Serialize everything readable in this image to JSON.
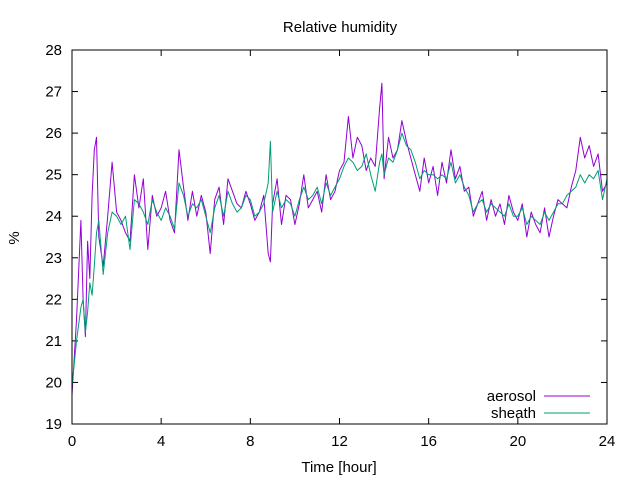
{
  "chart_data": {
    "type": "line",
    "title": "Relative humidity",
    "xlabel": "Time [hour]",
    "ylabel": "%",
    "xlim": [
      0,
      24
    ],
    "ylim": [
      19,
      28
    ],
    "xticks": [
      0,
      4,
      8,
      12,
      16,
      20,
      24
    ],
    "yticks": [
      19,
      20,
      21,
      22,
      23,
      24,
      25,
      26,
      27,
      28
    ],
    "grid": false,
    "legend_position": "bottom-right",
    "series": [
      {
        "name": "aerosol",
        "color": "#9400d3",
        "x": [
          0,
          0.2,
          0.4,
          0.5,
          0.6,
          0.7,
          0.8,
          0.9,
          1.0,
          1.1,
          1.2,
          1.4,
          1.6,
          1.8,
          2.0,
          2.2,
          2.4,
          2.6,
          2.8,
          3.0,
          3.2,
          3.4,
          3.6,
          3.8,
          4.0,
          4.2,
          4.4,
          4.6,
          4.8,
          5.0,
          5.2,
          5.4,
          5.6,
          5.8,
          6.0,
          6.2,
          6.4,
          6.6,
          6.8,
          7.0,
          7.2,
          7.4,
          7.6,
          7.8,
          8.0,
          8.2,
          8.4,
          8.6,
          8.8,
          8.9,
          9.0,
          9.2,
          9.4,
          9.6,
          9.8,
          10.0,
          10.2,
          10.4,
          10.6,
          10.8,
          11.0,
          11.2,
          11.4,
          11.6,
          11.8,
          12.0,
          12.2,
          12.4,
          12.6,
          12.8,
          13.0,
          13.2,
          13.4,
          13.6,
          13.8,
          13.9,
          14.0,
          14.2,
          14.4,
          14.6,
          14.8,
          15.0,
          15.2,
          15.4,
          15.6,
          15.8,
          16.0,
          16.2,
          16.4,
          16.6,
          16.8,
          17.0,
          17.2,
          17.4,
          17.6,
          17.8,
          18.0,
          18.2,
          18.4,
          18.6,
          18.8,
          19.0,
          19.2,
          19.4,
          19.6,
          19.8,
          20.0,
          20.2,
          20.4,
          20.6,
          20.8,
          21.0,
          21.2,
          21.4,
          21.6,
          21.8,
          22.0,
          22.2,
          22.4,
          22.6,
          22.8,
          23.0,
          23.2,
          23.4,
          23.6,
          23.8,
          24.0
        ],
        "values": [
          19.7,
          21.5,
          23.9,
          22.0,
          21.1,
          23.4,
          22.5,
          24.5,
          25.6,
          25.9,
          23.5,
          22.8,
          24.0,
          25.3,
          24.1,
          23.9,
          23.6,
          23.4,
          25.0,
          24.2,
          24.9,
          23.2,
          24.5,
          24.0,
          24.2,
          24.6,
          23.9,
          23.6,
          25.6,
          24.7,
          23.9,
          24.6,
          24.0,
          24.5,
          24.1,
          23.1,
          24.4,
          24.7,
          23.8,
          24.9,
          24.6,
          24.3,
          24.2,
          24.6,
          24.3,
          23.9,
          24.1,
          24.5,
          23.1,
          22.9,
          24.3,
          24.9,
          23.8,
          24.5,
          24.4,
          23.8,
          24.3,
          25.0,
          24.2,
          24.4,
          24.6,
          24.1,
          25.0,
          24.4,
          24.6,
          25.1,
          25.3,
          26.4,
          25.4,
          25.9,
          25.7,
          25.1,
          25.4,
          25.2,
          26.6,
          27.2,
          24.9,
          25.9,
          25.4,
          25.6,
          26.3,
          25.8,
          25.4,
          25.0,
          24.6,
          25.4,
          24.8,
          25.2,
          24.5,
          25.3,
          24.8,
          25.6,
          24.9,
          25.2,
          24.6,
          24.7,
          24.0,
          24.3,
          24.6,
          23.9,
          24.4,
          24.0,
          24.3,
          23.8,
          24.5,
          24.1,
          23.9,
          24.3,
          23.5,
          24.1,
          23.8,
          23.6,
          24.2,
          23.5,
          24.0,
          24.4,
          24.3,
          24.2,
          24.7,
          25.1,
          25.9,
          25.4,
          25.7,
          25.2,
          25.5,
          24.6,
          24.8
        ],
        "legend_label": "aerosol"
      },
      {
        "name": "sheath",
        "color": "#009e73",
        "x": [
          0,
          0.2,
          0.4,
          0.5,
          0.6,
          0.7,
          0.8,
          0.9,
          1.0,
          1.1,
          1.2,
          1.4,
          1.6,
          1.8,
          2.0,
          2.2,
          2.4,
          2.6,
          2.8,
          3.0,
          3.2,
          3.4,
          3.6,
          3.8,
          4.0,
          4.2,
          4.4,
          4.6,
          4.8,
          5.0,
          5.2,
          5.4,
          5.6,
          5.8,
          6.0,
          6.2,
          6.4,
          6.6,
          6.8,
          7.0,
          7.2,
          7.4,
          7.6,
          7.8,
          8.0,
          8.2,
          8.4,
          8.6,
          8.8,
          8.9,
          9.0,
          9.2,
          9.4,
          9.6,
          9.8,
          10.0,
          10.2,
          10.4,
          10.6,
          10.8,
          11.0,
          11.2,
          11.4,
          11.6,
          11.8,
          12.0,
          12.2,
          12.4,
          12.6,
          12.8,
          13.0,
          13.2,
          13.4,
          13.6,
          13.8,
          13.9,
          14.0,
          14.2,
          14.4,
          14.6,
          14.8,
          15.0,
          15.2,
          15.4,
          15.6,
          15.8,
          16.0,
          16.2,
          16.4,
          16.6,
          16.8,
          17.0,
          17.2,
          17.4,
          17.6,
          17.8,
          18.0,
          18.2,
          18.4,
          18.6,
          18.8,
          19.0,
          19.2,
          19.4,
          19.6,
          19.8,
          20.0,
          20.2,
          20.4,
          20.6,
          20.8,
          21.0,
          21.2,
          21.4,
          21.6,
          21.8,
          22.0,
          22.2,
          22.4,
          22.6,
          22.8,
          23.0,
          23.2,
          23.4,
          23.6,
          23.8,
          24.0
        ],
        "values": [
          19.9,
          21.0,
          21.8,
          22.0,
          21.2,
          21.7,
          22.4,
          22.1,
          22.8,
          23.6,
          23.9,
          22.6,
          23.6,
          24.1,
          24.0,
          23.8,
          24.0,
          23.2,
          24.4,
          24.3,
          24.1,
          23.8,
          24.4,
          24.1,
          23.9,
          24.2,
          24.0,
          23.7,
          24.8,
          24.5,
          24.0,
          24.3,
          24.2,
          24.4,
          24.0,
          23.6,
          24.2,
          24.5,
          24.0,
          24.6,
          24.3,
          24.1,
          24.2,
          24.5,
          24.4,
          24.0,
          24.1,
          24.3,
          24.8,
          25.8,
          24.1,
          24.6,
          24.2,
          24.4,
          24.3,
          24.0,
          24.4,
          24.7,
          24.4,
          24.5,
          24.7,
          24.3,
          24.8,
          24.5,
          24.7,
          24.9,
          25.2,
          25.4,
          25.3,
          25.1,
          25.2,
          25.5,
          25.0,
          24.6,
          25.3,
          25.5,
          25.0,
          25.4,
          25.3,
          25.6,
          26.0,
          25.7,
          25.6,
          25.3,
          24.9,
          25.1,
          25.0,
          25.0,
          24.9,
          25.0,
          24.9,
          25.3,
          24.8,
          25.0,
          24.7,
          24.5,
          24.1,
          24.3,
          24.4,
          24.1,
          24.3,
          24.2,
          24.1,
          24.0,
          24.3,
          24.0,
          24.0,
          24.2,
          23.8,
          24.0,
          23.9,
          23.8,
          24.1,
          23.9,
          24.1,
          24.3,
          24.3,
          24.5,
          24.6,
          24.7,
          25.0,
          24.8,
          25.0,
          24.9,
          25.1,
          24.4,
          24.9
        ],
        "legend_label": "sheath"
      }
    ]
  }
}
